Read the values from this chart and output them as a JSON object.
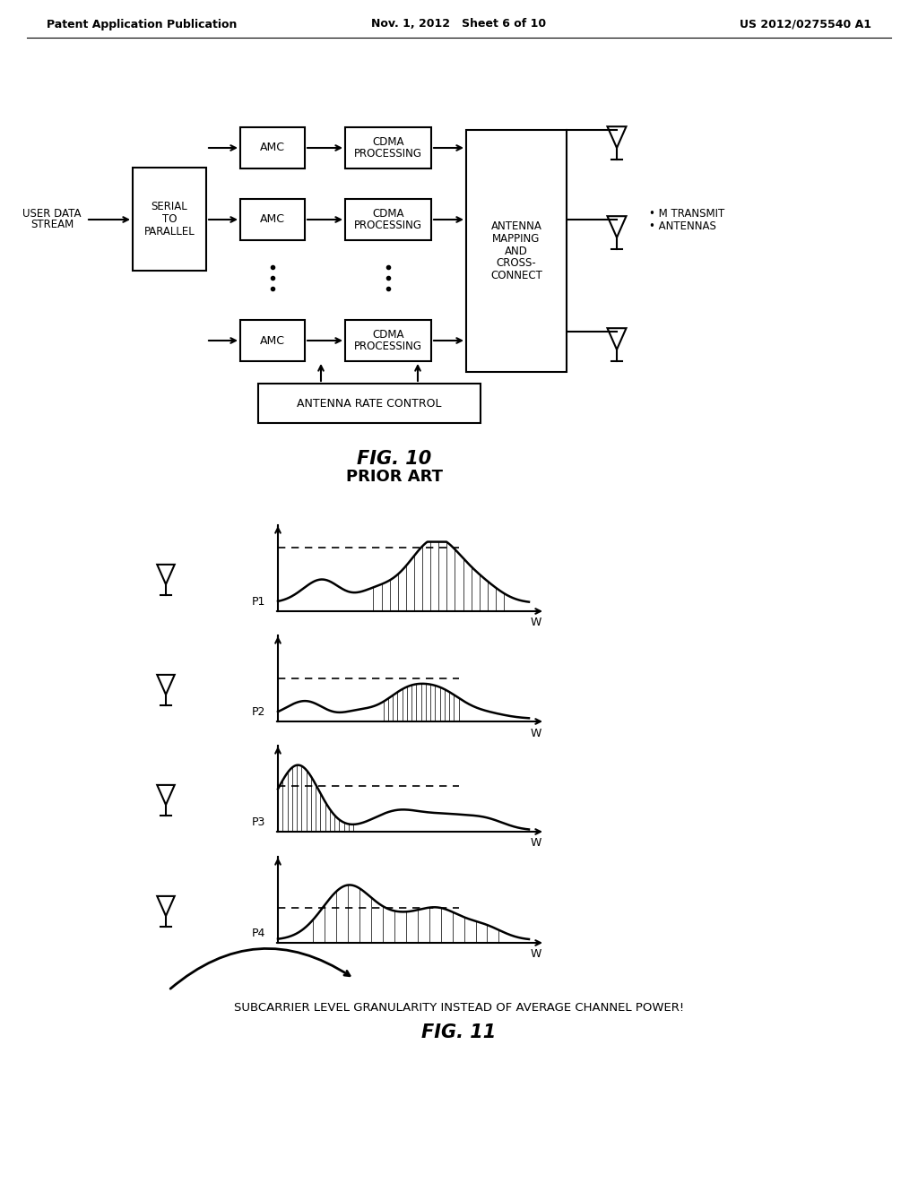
{
  "header_left": "Patent Application Publication",
  "header_mid": "Nov. 1, 2012   Sheet 6 of 10",
  "header_right": "US 2012/0275540 A1",
  "fig10_title": "FIG. 10",
  "fig10_subtitle": "PRIOR ART",
  "fig11_title": "FIG. 11",
  "fig11_subtitle": "SUBCARRIER LEVEL GRANULARITY INSTEAD OF AVERAGE CHANNEL POWER!",
  "bg_color": "white"
}
